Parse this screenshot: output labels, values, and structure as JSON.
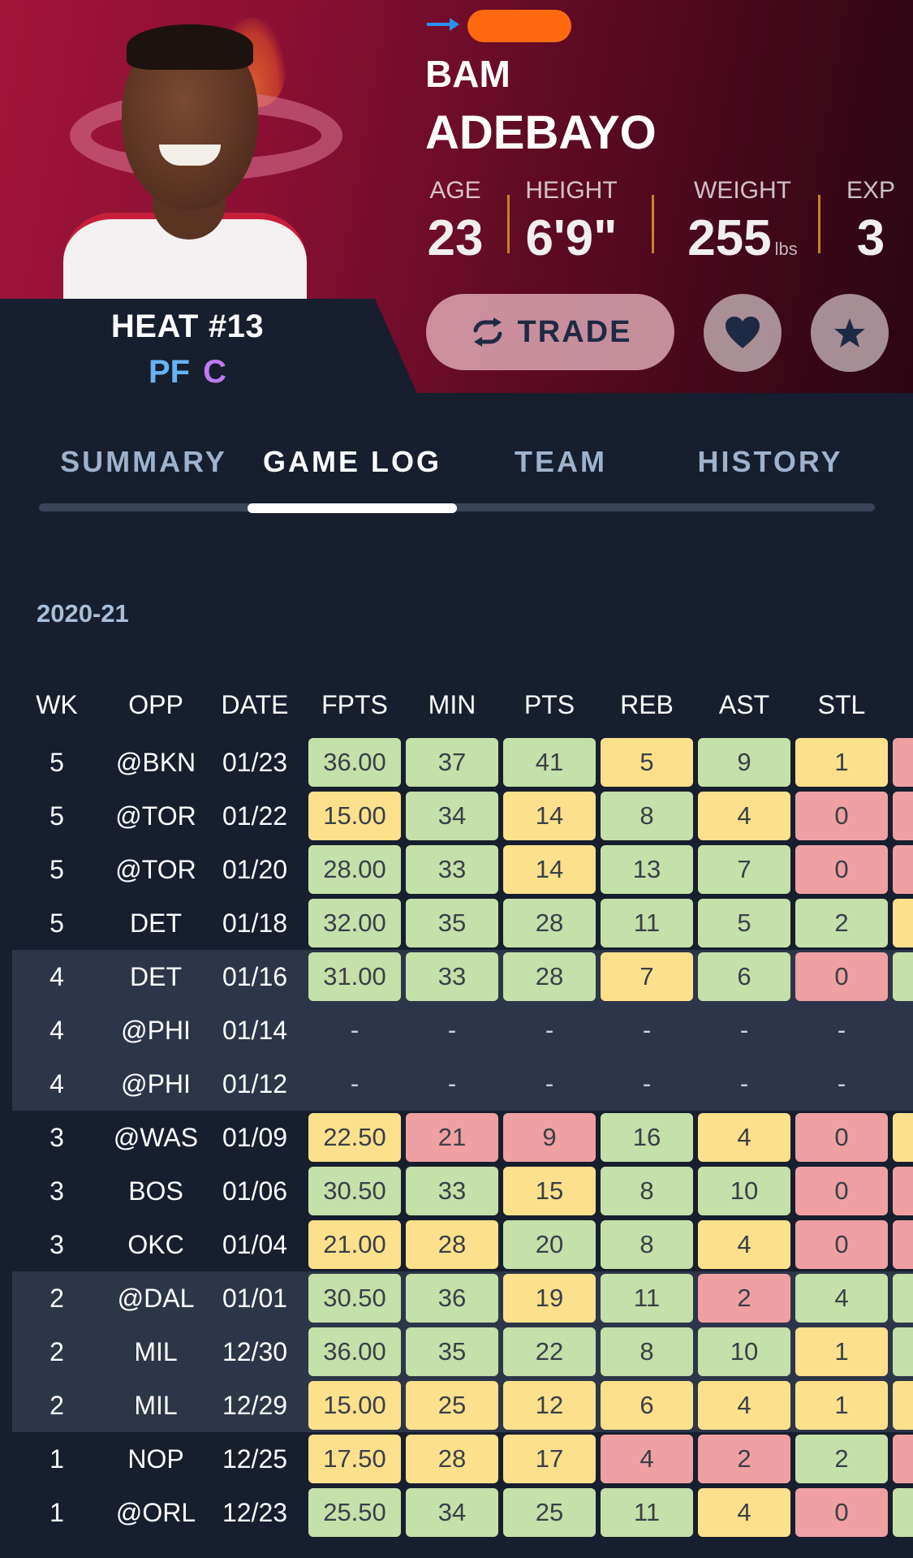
{
  "player": {
    "first_name": "BAM",
    "last_name": "ADEBAYO",
    "team": "HEAT",
    "number": "#13",
    "positions": [
      "PF",
      "C"
    ]
  },
  "bio": {
    "age_label": "AGE",
    "age": "23",
    "height_label": "HEIGHT",
    "height": "6'9\"",
    "weight_label": "WEIGHT",
    "weight": "255",
    "weight_unit": "lbs",
    "exp_label": "EXP",
    "exp": "3"
  },
  "actions": {
    "trade_label": "TRADE",
    "favorite_icon": "heart-icon",
    "watch_icon": "star-icon"
  },
  "tabs": [
    {
      "label": "SUMMARY",
      "active": false
    },
    {
      "label": "GAME LOG",
      "active": true
    },
    {
      "label": "TEAM",
      "active": false
    },
    {
      "label": "HISTORY",
      "active": false
    }
  ],
  "season": "2020-21",
  "columns": [
    "WK",
    "OPP",
    "DATE",
    "FPTS",
    "MIN",
    "PTS",
    "REB",
    "AST",
    "STL"
  ],
  "colors": {
    "good": "#c5e0a8",
    "mid": "#fde08b",
    "bad": "#eea0a2",
    "band": "#2d3649"
  },
  "games": [
    {
      "wk": "5",
      "opp": "@BKN",
      "date": "01/23",
      "band": false,
      "stats": [
        [
          "36.00",
          "g"
        ],
        [
          "37",
          "g"
        ],
        [
          "41",
          "g"
        ],
        [
          "5",
          "y"
        ],
        [
          "9",
          "g"
        ],
        [
          "1",
          "y"
        ]
      ],
      "edge": "r"
    },
    {
      "wk": "5",
      "opp": "@TOR",
      "date": "01/22",
      "band": false,
      "stats": [
        [
          "15.00",
          "y"
        ],
        [
          "34",
          "g"
        ],
        [
          "14",
          "y"
        ],
        [
          "8",
          "g"
        ],
        [
          "4",
          "y"
        ],
        [
          "0",
          "r"
        ]
      ],
      "edge": "r"
    },
    {
      "wk": "5",
      "opp": "@TOR",
      "date": "01/20",
      "band": false,
      "stats": [
        [
          "28.00",
          "g"
        ],
        [
          "33",
          "g"
        ],
        [
          "14",
          "y"
        ],
        [
          "13",
          "g"
        ],
        [
          "7",
          "g"
        ],
        [
          "0",
          "r"
        ]
      ],
      "edge": "r"
    },
    {
      "wk": "5",
      "opp": "DET",
      "date": "01/18",
      "band": false,
      "stats": [
        [
          "32.00",
          "g"
        ],
        [
          "35",
          "g"
        ],
        [
          "28",
          "g"
        ],
        [
          "11",
          "g"
        ],
        [
          "5",
          "g"
        ],
        [
          "2",
          "g"
        ]
      ],
      "edge": "y"
    },
    {
      "wk": "4",
      "opp": "DET",
      "date": "01/16",
      "band": true,
      "stats": [
        [
          "31.00",
          "g"
        ],
        [
          "33",
          "g"
        ],
        [
          "28",
          "g"
        ],
        [
          "7",
          "y"
        ],
        [
          "6",
          "g"
        ],
        [
          "0",
          "r"
        ]
      ],
      "edge": "g"
    },
    {
      "wk": "4",
      "opp": "@PHI",
      "date": "01/14",
      "band": true,
      "stats": [
        [
          "-",
          "dash"
        ],
        [
          "-",
          "dash"
        ],
        [
          "-",
          "dash"
        ],
        [
          "-",
          "dash"
        ],
        [
          "-",
          "dash"
        ],
        [
          "-",
          "dash"
        ]
      ],
      "edge": "none"
    },
    {
      "wk": "4",
      "opp": "@PHI",
      "date": "01/12",
      "band": true,
      "stats": [
        [
          "-",
          "dash"
        ],
        [
          "-",
          "dash"
        ],
        [
          "-",
          "dash"
        ],
        [
          "-",
          "dash"
        ],
        [
          "-",
          "dash"
        ],
        [
          "-",
          "dash"
        ]
      ],
      "edge": "none"
    },
    {
      "wk": "3",
      "opp": "@WAS",
      "date": "01/09",
      "band": false,
      "stats": [
        [
          "22.50",
          "y"
        ],
        [
          "21",
          "r"
        ],
        [
          "9",
          "r"
        ],
        [
          "16",
          "g"
        ],
        [
          "4",
          "y"
        ],
        [
          "0",
          "r"
        ]
      ],
      "edge": "y"
    },
    {
      "wk": "3",
      "opp": "BOS",
      "date": "01/06",
      "band": false,
      "stats": [
        [
          "30.50",
          "g"
        ],
        [
          "33",
          "g"
        ],
        [
          "15",
          "y"
        ],
        [
          "8",
          "g"
        ],
        [
          "10",
          "g"
        ],
        [
          "0",
          "r"
        ]
      ],
      "edge": "r"
    },
    {
      "wk": "3",
      "opp": "OKC",
      "date": "01/04",
      "band": false,
      "stats": [
        [
          "21.00",
          "y"
        ],
        [
          "28",
          "y"
        ],
        [
          "20",
          "g"
        ],
        [
          "8",
          "g"
        ],
        [
          "4",
          "y"
        ],
        [
          "0",
          "r"
        ]
      ],
      "edge": "r"
    },
    {
      "wk": "2",
      "opp": "@DAL",
      "date": "01/01",
      "band": true,
      "stats": [
        [
          "30.50",
          "g"
        ],
        [
          "36",
          "g"
        ],
        [
          "19",
          "y"
        ],
        [
          "11",
          "g"
        ],
        [
          "2",
          "r"
        ],
        [
          "4",
          "g"
        ]
      ],
      "edge": "g"
    },
    {
      "wk": "2",
      "opp": "MIL",
      "date": "12/30",
      "band": true,
      "stats": [
        [
          "36.00",
          "g"
        ],
        [
          "35",
          "g"
        ],
        [
          "22",
          "g"
        ],
        [
          "8",
          "g"
        ],
        [
          "10",
          "g"
        ],
        [
          "1",
          "y"
        ]
      ],
      "edge": "g"
    },
    {
      "wk": "2",
      "opp": "MIL",
      "date": "12/29",
      "band": true,
      "stats": [
        [
          "15.00",
          "y"
        ],
        [
          "25",
          "y"
        ],
        [
          "12",
          "y"
        ],
        [
          "6",
          "y"
        ],
        [
          "4",
          "y"
        ],
        [
          "1",
          "y"
        ]
      ],
      "edge": "y"
    },
    {
      "wk": "1",
      "opp": "NOP",
      "date": "12/25",
      "band": false,
      "stats": [
        [
          "17.50",
          "y"
        ],
        [
          "28",
          "y"
        ],
        [
          "17",
          "y"
        ],
        [
          "4",
          "r"
        ],
        [
          "2",
          "r"
        ],
        [
          "2",
          "g"
        ]
      ],
      "edge": "r"
    },
    {
      "wk": "1",
      "opp": "@ORL",
      "date": "12/23",
      "band": false,
      "stats": [
        [
          "25.50",
          "g"
        ],
        [
          "34",
          "g"
        ],
        [
          "25",
          "g"
        ],
        [
          "11",
          "g"
        ],
        [
          "4",
          "y"
        ],
        [
          "0",
          "r"
        ]
      ],
      "edge": "g"
    }
  ]
}
